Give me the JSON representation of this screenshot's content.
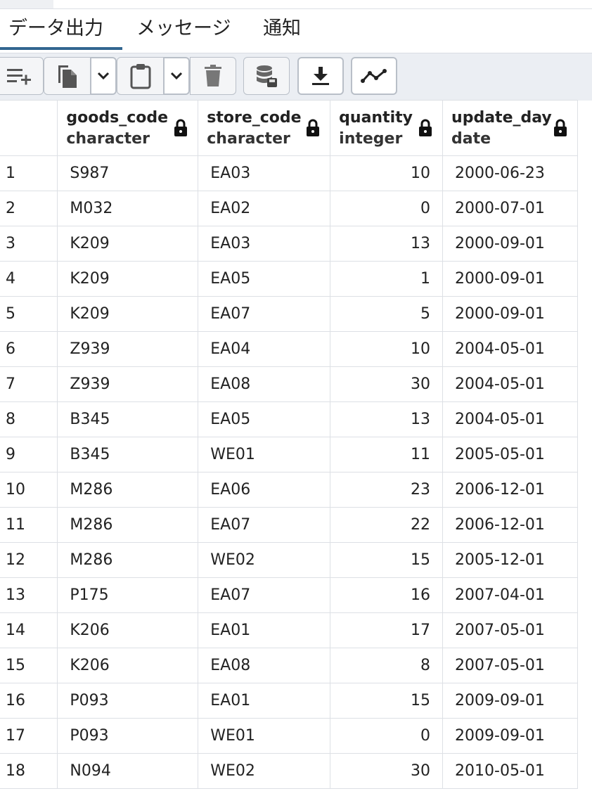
{
  "tabs": [
    {
      "label": "データ出力",
      "active": true
    },
    {
      "label": "メッセージ",
      "active": false
    },
    {
      "label": "通知",
      "active": false
    }
  ],
  "toolbar": {
    "buttons": [
      {
        "name": "add-row-button",
        "icon": "add-row-icon"
      },
      {
        "name": "copy-button",
        "icon": "copy-icon"
      },
      {
        "name": "copy-options-dropdown",
        "icon": "chevron-down-icon"
      },
      {
        "name": "paste-button",
        "icon": "paste-icon"
      },
      {
        "name": "paste-options-dropdown",
        "icon": "chevron-down-icon"
      },
      {
        "name": "delete-button",
        "icon": "trash-icon"
      },
      {
        "name": "save-data-button",
        "icon": "database-save-icon"
      },
      {
        "name": "download-button",
        "icon": "download-icon"
      },
      {
        "name": "graph-button",
        "icon": "line-graph-icon"
      }
    ]
  },
  "columns": [
    {
      "name": "goods_code",
      "type": "character",
      "icon": "lock-icon"
    },
    {
      "name": "store_code",
      "type": "character",
      "icon": "lock-icon"
    },
    {
      "name": "quantity",
      "type": "integer",
      "icon": "lock-icon"
    },
    {
      "name": "update_day",
      "type": "date",
      "icon": "lock-icon"
    }
  ],
  "rows": [
    [
      "1",
      "S987",
      "EA03",
      "10",
      "2000-06-23"
    ],
    [
      "2",
      "M032",
      "EA02",
      "0",
      "2000-07-01"
    ],
    [
      "3",
      "K209",
      "EA03",
      "13",
      "2000-09-01"
    ],
    [
      "4",
      "K209",
      "EA05",
      "1",
      "2000-09-01"
    ],
    [
      "5",
      "K209",
      "EA07",
      "5",
      "2000-09-01"
    ],
    [
      "6",
      "Z939",
      "EA04",
      "10",
      "2004-05-01"
    ],
    [
      "7",
      "Z939",
      "EA08",
      "30",
      "2004-05-01"
    ],
    [
      "8",
      "B345",
      "EA05",
      "13",
      "2004-05-01"
    ],
    [
      "9",
      "B345",
      "WE01",
      "11",
      "2005-05-01"
    ],
    [
      "10",
      "M286",
      "EA06",
      "23",
      "2006-12-01"
    ],
    [
      "11",
      "M286",
      "EA07",
      "22",
      "2006-12-01"
    ],
    [
      "12",
      "M286",
      "WE02",
      "15",
      "2005-12-01"
    ],
    [
      "13",
      "P175",
      "EA07",
      "16",
      "2007-04-01"
    ],
    [
      "14",
      "K206",
      "EA01",
      "17",
      "2007-05-01"
    ],
    [
      "15",
      "K206",
      "EA08",
      "8",
      "2007-05-01"
    ],
    [
      "16",
      "P093",
      "EA01",
      "15",
      "2009-09-01"
    ],
    [
      "17",
      "P093",
      "WE01",
      "0",
      "2009-09-01"
    ],
    [
      "18",
      "N094",
      "WE02",
      "30",
      "2010-05-01"
    ]
  ]
}
